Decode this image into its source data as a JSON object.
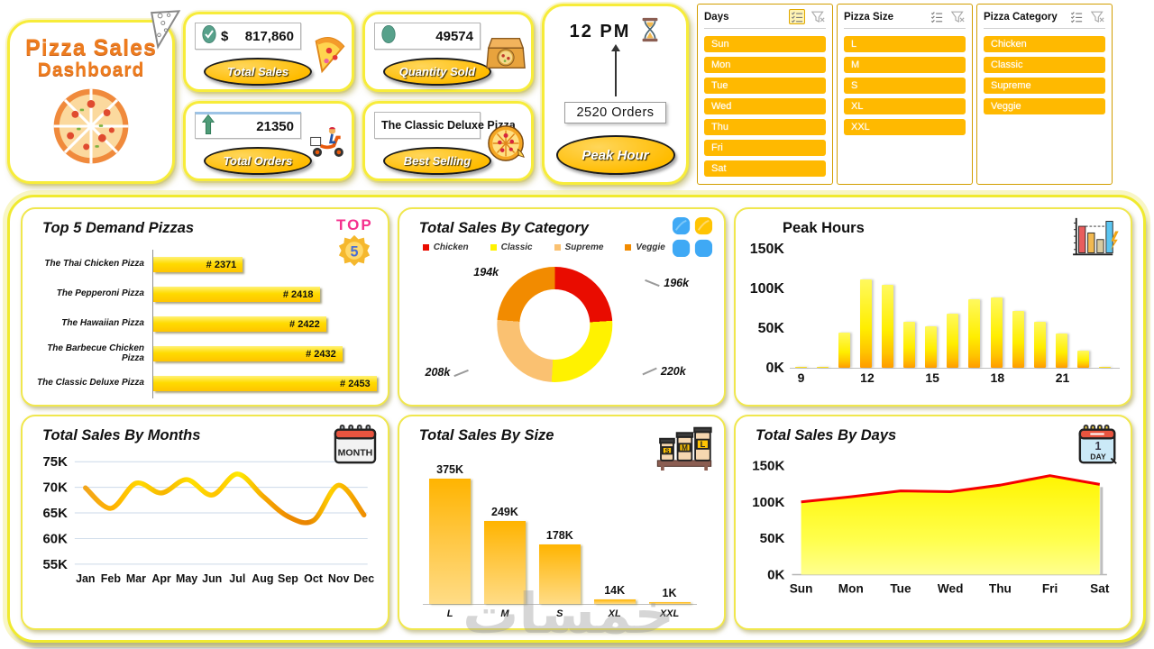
{
  "logo": {
    "title_line1": "Pizza Sales",
    "title_line2": "Dashboard"
  },
  "kpis": {
    "total_sales": {
      "currency": "$",
      "value": "817,860",
      "label": "Total Sales"
    },
    "quantity_sold": {
      "value": "49574",
      "label": "Quantity Sold"
    },
    "total_orders": {
      "value": "21350",
      "label": "Total Orders"
    },
    "best_selling": {
      "value": "The Classic Deluxe Pizza",
      "label": "Best Selling"
    },
    "peak_hour": {
      "time": "12 PM",
      "orders": "2520 Orders",
      "label": "Peak Hour"
    }
  },
  "slicers": [
    {
      "title": "Days",
      "items": [
        "Sun",
        "Mon",
        "Tue",
        "Wed",
        "Thu",
        "Fri",
        "Sat"
      ],
      "multiselect_active": true
    },
    {
      "title": "Pizza Size",
      "items": [
        "L",
        "M",
        "S",
        "XL",
        "XXL"
      ],
      "multiselect_active": false
    },
    {
      "title": "Pizza Category",
      "items": [
        "Chicken",
        "Classic",
        "Supreme",
        "Veggie"
      ],
      "multiselect_active": false
    }
  ],
  "colors": {
    "gold": "#FFB900",
    "card_border": "#F7EC3A",
    "ellipse_gold": "#FFC000",
    "donut": [
      "#E90C00",
      "#FFF200",
      "#FAC171",
      "#F28B00"
    ],
    "area_line_red": "#F50000"
  },
  "watermark": {
    "text": "خمسات"
  },
  "chart_data": [
    {
      "id": "top5",
      "type": "bar",
      "orientation": "horizontal",
      "title": "Top 5 Demand Pizzas",
      "badge_top": "TOP",
      "badge_number": "5",
      "categories": [
        "The Thai Chicken Pizza",
        "The Pepperoni Pizza",
        "The Hawaiian Pizza",
        "The Barbecue Chicken Pizza",
        "The Classic Deluxe Pizza"
      ],
      "values": [
        2371,
        2418,
        2422,
        2432,
        2453
      ],
      "value_labels": [
        "# 2371",
        "# 2418",
        "# 2422",
        "# 2432",
        "# 2453"
      ],
      "axis_min": 2316,
      "axis_max": 2453
    },
    {
      "id": "category",
      "type": "pie",
      "title": "Total Sales By Category",
      "legend": [
        "Chicken",
        "Classic",
        "Supreme",
        "Veggie"
      ],
      "values_k": [
        196,
        220,
        208,
        194
      ],
      "labels": [
        "196k",
        "220k",
        "208k",
        "194k"
      ],
      "positions": [
        "tr",
        "br",
        "bl",
        "tl"
      ],
      "colors": [
        "#E90C00",
        "#FFF200",
        "#FAC171",
        "#F28B00"
      ]
    },
    {
      "id": "peak_hours",
      "type": "bar",
      "title": "Peak Hours",
      "x": [
        9,
        10,
        11,
        12,
        13,
        14,
        15,
        16,
        17,
        18,
        19,
        20,
        21,
        22,
        23
      ],
      "values_k": [
        1,
        1,
        44,
        111,
        105,
        58,
        52,
        68,
        86,
        89,
        72,
        58,
        43,
        22,
        1
      ],
      "xticks": [
        9,
        12,
        15,
        18,
        21
      ],
      "yticks": [
        "150K",
        "100K",
        "50K",
        "0K"
      ],
      "yticks_v": [
        150,
        100,
        50,
        0
      ],
      "ylim": [
        0,
        150
      ]
    },
    {
      "id": "months",
      "type": "line",
      "title": "Total Sales By Months",
      "icon_label": "MONTH",
      "categories": [
        "Jan",
        "Feb",
        "Mar",
        "Apr",
        "May",
        "Jun",
        "Jul",
        "Aug",
        "Sep",
        "Oct",
        "Nov",
        "Dec"
      ],
      "values_k": [
        69.9,
        65.9,
        70.8,
        68.9,
        71.5,
        68.5,
        72.6,
        68.3,
        64.3,
        63.5,
        70.4,
        64.6
      ],
      "yticks": [
        "75K",
        "70K",
        "65K",
        "60K",
        "55K"
      ],
      "yticks_v": [
        75,
        70,
        65,
        60,
        55
      ],
      "ylim": [
        55,
        75
      ]
    },
    {
      "id": "size",
      "type": "bar",
      "title": "Total Sales By Size",
      "icon_letters": [
        "S",
        "M",
        "L"
      ],
      "categories": [
        "L",
        "M",
        "S",
        "XL",
        "XXL"
      ],
      "values_k": [
        375,
        249,
        178,
        14,
        1
      ],
      "labels": [
        "375K",
        "249K",
        "178K",
        "14K",
        "1K"
      ],
      "ylim": [
        0,
        400
      ]
    },
    {
      "id": "days",
      "type": "area",
      "title": "Total Sales By Days",
      "icon_number": "1",
      "icon_label": "DAY",
      "categories": [
        "Sun",
        "Mon",
        "Tue",
        "Wed",
        "Thu",
        "Fri",
        "Sat"
      ],
      "values_k": [
        100,
        107,
        115,
        114,
        123,
        136,
        124
      ],
      "yticks": [
        "150K",
        "100K",
        "50K",
        "0K"
      ],
      "yticks_v": [
        150,
        100,
        50,
        0
      ],
      "ylim": [
        0,
        150
      ]
    }
  ]
}
